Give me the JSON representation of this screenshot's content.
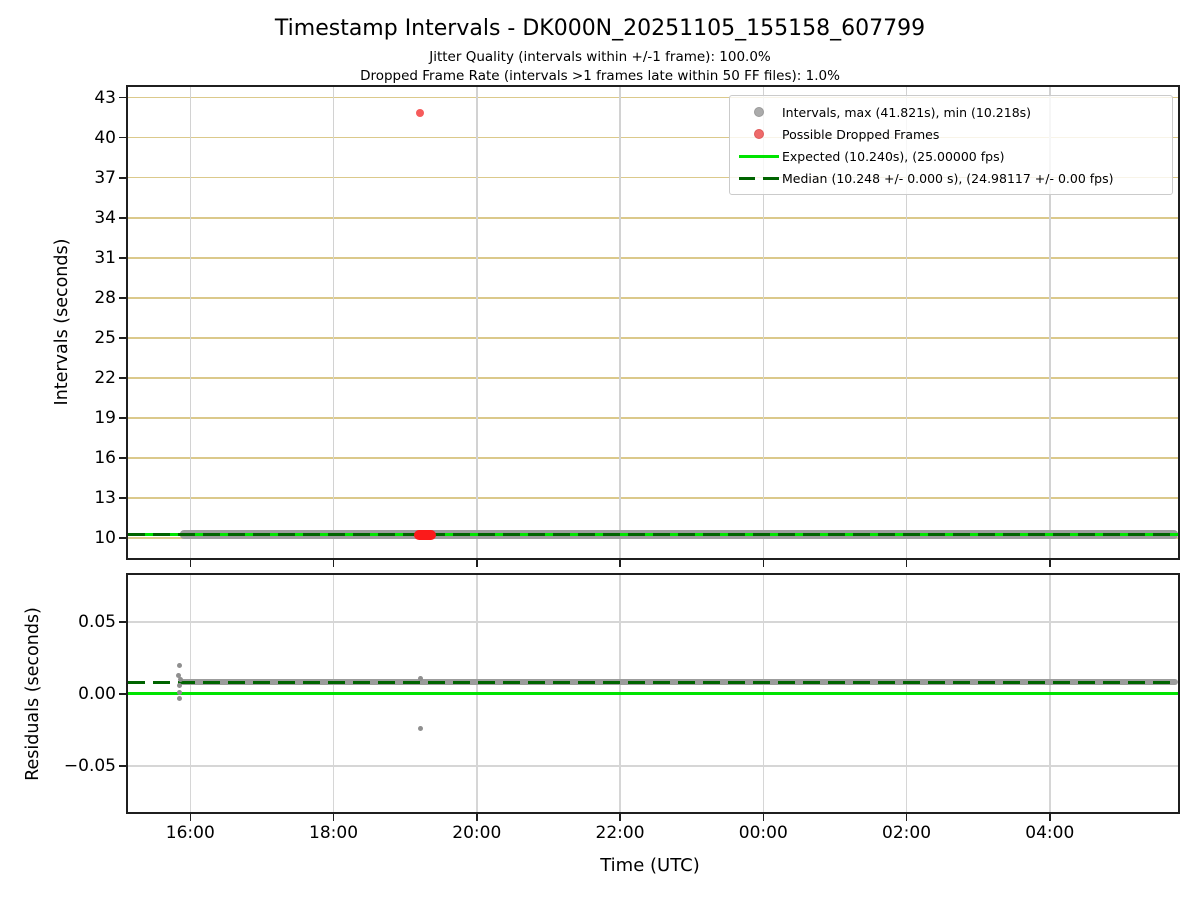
{
  "figure": {
    "title": "Timestamp Intervals - DK000N_20251105_155158_607799",
    "subtitle_jitter": "Jitter Quality (intervals within +/-1 frame): 100.0%",
    "subtitle_dropped": "Dropped Frame Rate (intervals >1 frames late within 50 FF files): 1.0%"
  },
  "colors": {
    "expected_line": "#00e400",
    "median_line": "#006400",
    "intervals_band": "#9c9c9c",
    "dropped_frames": "#fb1a1a",
    "dropped_outlier": "#f65b5b",
    "scatter_gray": "#8f8f8f",
    "grid_khaki": "#dbc98b",
    "grid_gray": "#d2d2d2",
    "spine": "#1f1f1f"
  },
  "chart_data": [
    {
      "type": "scatter",
      "subplot": "intervals",
      "ylabel": "Intervals (seconds)",
      "x_axis": {
        "start_hour": 15.13,
        "end_hour": 29.79,
        "ticks": [
          16,
          18,
          20,
          22,
          24,
          26,
          28
        ],
        "tick_labels": [
          "16:00",
          "18:00",
          "20:00",
          "22:00",
          "00:00",
          "02:00",
          "04:00"
        ],
        "show_tick_labels": false
      },
      "y_axis": {
        "min": 8.5,
        "max": 43.8,
        "ticks": [
          10,
          13,
          16,
          19,
          22,
          25,
          28,
          31,
          34,
          37,
          40,
          43
        ],
        "tick_labels": [
          "10",
          "13",
          "16",
          "19",
          "22",
          "25",
          "28",
          "31",
          "34",
          "37",
          "40",
          "43"
        ]
      },
      "grid": {
        "h_color": "#dbc98b",
        "v_color": "#d2d2d2"
      },
      "series": {
        "band": {
          "name": "intervals",
          "start_hour": 15.86,
          "end_hour": 29.79,
          "value": 10.248,
          "thickness": 9,
          "color": "#9c9c9c"
        },
        "cluster": {
          "name": "possible-dropped-frames",
          "start_hour": 19.13,
          "end_hour": 19.43,
          "value": 10.248,
          "thickness": 10,
          "color": "#fb1a1a"
        },
        "expected_line": {
          "value": 10.24,
          "fps": 25.0,
          "color": "#00e400"
        },
        "median_line": {
          "value": 10.248,
          "fps": 24.98117,
          "color": "#006400"
        },
        "points": [
          {
            "hour": 19.2,
            "value": 41.821,
            "color": "#f65b5b",
            "size": 8
          }
        ]
      },
      "stats": {
        "max_s": 41.821,
        "min_s": 10.218,
        "expected_s": 10.24,
        "expected_fps": "25.00000",
        "median_s": 10.248,
        "median_fps": "24.98117"
      },
      "legend": {
        "position": "upper right",
        "items": [
          {
            "marker": "gray-dot",
            "label": "Intervals, max (41.821s), min (10.218s)"
          },
          {
            "marker": "red-dot",
            "label": "Possible Dropped Frames"
          },
          {
            "marker": "green-solid-line",
            "label": "Expected (10.240s), (25.00000 fps)"
          },
          {
            "marker": "darkgreen-dashed-line",
            "label": "Median (10.248 +/- 0.000 s), (24.98117 +/- 0.00 fps)"
          }
        ]
      }
    },
    {
      "type": "scatter",
      "subplot": "residuals",
      "ylabel": "Residuals (seconds)",
      "xlabel": "Time (UTC)",
      "x_axis": {
        "start_hour": 15.13,
        "end_hour": 29.79,
        "ticks": [
          16,
          18,
          20,
          22,
          24,
          26,
          28
        ],
        "tick_labels": [
          "16:00",
          "18:00",
          "20:00",
          "22:00",
          "00:00",
          "02:00",
          "04:00"
        ],
        "show_tick_labels": true
      },
      "y_axis": {
        "min": -0.082,
        "max": 0.0826,
        "ticks": [
          0.05,
          0,
          -0.05
        ],
        "tick_labels": [
          "0.05",
          "0.00",
          "−0.05"
        ]
      },
      "grid": {
        "h_color": "#d6d6d6",
        "v_color": "#d6d6d6"
      },
      "series": {
        "band": {
          "name": "residuals",
          "start_hour": 15.86,
          "end_hour": 29.79,
          "value": 0.008,
          "thickness": 6,
          "color": "#9c9c9c"
        },
        "expected_line": {
          "value": 0.0,
          "color": "#00e400"
        },
        "median_line": {
          "value": 0.008,
          "color": "#006400"
        },
        "points": [
          {
            "hour": 15.85,
            "value": 0.02
          },
          {
            "hour": 15.84,
            "value": 0.0125
          },
          {
            "hour": 15.86,
            "value": 0.01
          },
          {
            "hour": 15.85,
            "value": 0.006
          },
          {
            "hour": 15.85,
            "value": 0.001
          },
          {
            "hour": 15.85,
            "value": -0.0035
          },
          {
            "hour": 19.22,
            "value": 0.011
          },
          {
            "hour": 19.22,
            "value": -0.024
          }
        ]
      }
    }
  ]
}
